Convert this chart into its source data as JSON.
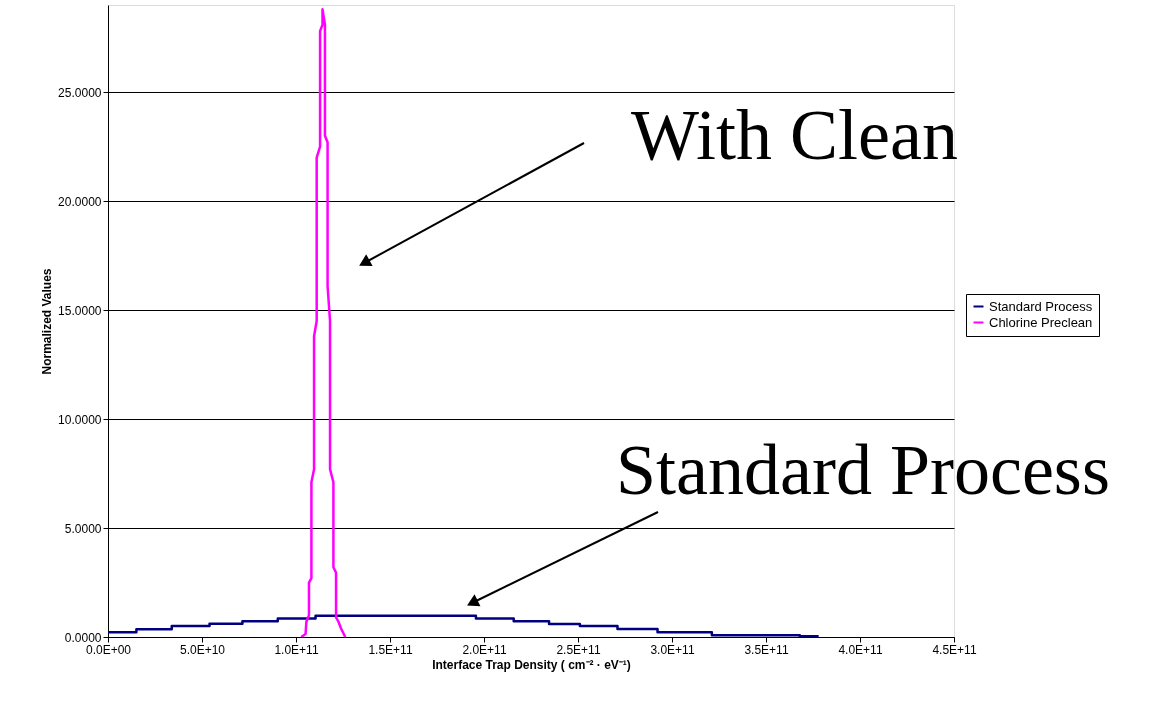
{
  "chart_data": {
    "type": "line",
    "xlabel": "Interface Trap Density ( cm⁻² · eV⁻¹)",
    "ylabel": "Normalized Values",
    "xlim": [
      0,
      450000000000
    ],
    "ylim": [
      0,
      29
    ],
    "xticks": [
      {
        "value": 0,
        "label": "0.0E+00"
      },
      {
        "value": 50000000000,
        "label": "5.0E+10"
      },
      {
        "value": 100000000000,
        "label": "1.0E+11"
      },
      {
        "value": 150000000000,
        "label": "1.5E+11"
      },
      {
        "value": 200000000000,
        "label": "2.0E+11"
      },
      {
        "value": 250000000000,
        "label": "2.5E+11"
      },
      {
        "value": 300000000000,
        "label": "3.0E+11"
      },
      {
        "value": 350000000000,
        "label": "3.5E+11"
      },
      {
        "value": 400000000000,
        "label": "4.0E+11"
      },
      {
        "value": 450000000000,
        "label": "4.5E+11"
      }
    ],
    "yticks": [
      {
        "value": 0,
        "label": "0.0000"
      },
      {
        "value": 5,
        "label": "5.0000"
      },
      {
        "value": 10,
        "label": "10.0000"
      },
      {
        "value": 15,
        "label": "15.0000"
      },
      {
        "value": 20,
        "label": "20.0000"
      },
      {
        "value": 25,
        "label": "25.0000"
      }
    ],
    "grid": "y",
    "legend": "right",
    "series": [
      {
        "name": "Standard Process",
        "color": "#000080",
        "type": "step",
        "x": [
          0,
          15100000000,
          33900000000,
          54000000000,
          71500000000,
          90300000000,
          110400000000,
          195700000000,
          215800000000,
          234600000000,
          251000000000,
          271000000000,
          292300000000,
          321200000000,
          368000000000,
          378000000000
        ],
        "values": [
          0.22,
          0.35,
          0.5,
          0.61,
          0.72,
          0.85,
          0.98,
          0.85,
          0.72,
          0.6,
          0.5,
          0.37,
          0.22,
          0.08,
          0.03,
          0.03
        ]
      },
      {
        "name": "Chlorine Preclean",
        "color": "#ff00ff",
        "type": "line",
        "x": [
          102800000000,
          105100000000,
          105500000000,
          106900000000,
          106900000000,
          108200000000,
          108200000000,
          109600000000,
          109600000000,
          111000000000,
          111000000000,
          112800000000,
          112800000000,
          114100000000,
          114100000000,
          115400000000,
          115400000000,
          116800000000,
          116800000000,
          118100000000,
          118100000000,
          119900000000,
          119900000000,
          121300000000,
          121300000000,
          122600000000,
          123900000000,
          126200000000
        ],
        "values": [
          0,
          0.14,
          0.7,
          1.0,
          2.5,
          2.7,
          7.1,
          7.7,
          13.8,
          14.5,
          22.0,
          22.5,
          27.8,
          28.1,
          28.8,
          28.1,
          23.0,
          22.7,
          16.1,
          14.5,
          7.7,
          7.1,
          3.2,
          2.95,
          0.9,
          0.7,
          0.4,
          0
        ]
      }
    ],
    "annotations": [
      "With Clean",
      "Standard Process"
    ]
  }
}
